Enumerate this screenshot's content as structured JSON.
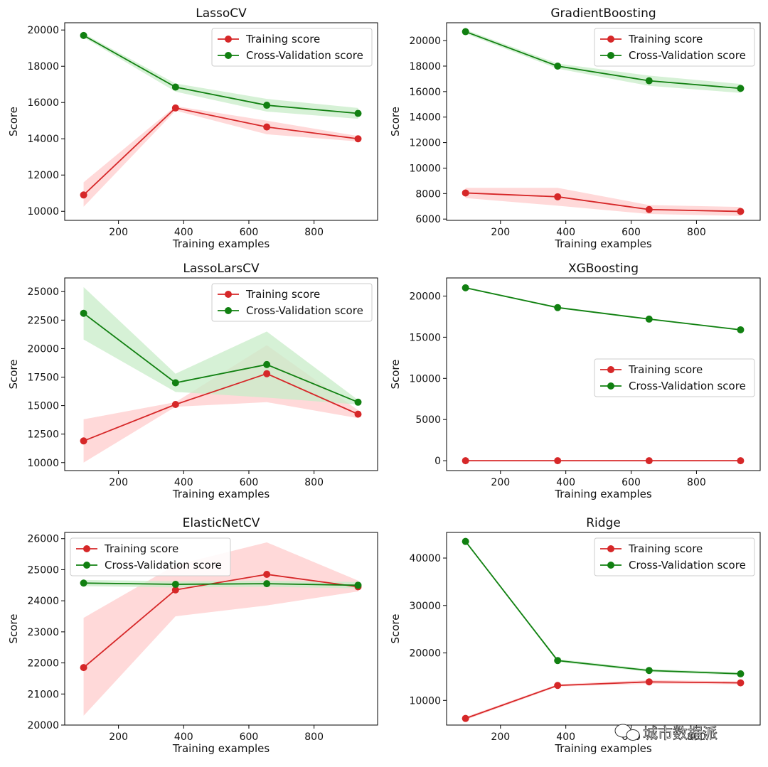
{
  "figure": {
    "watermark": "城市数据派",
    "colors": {
      "train": "#d62728",
      "cv": "#118011",
      "train_band": "#ffcccc",
      "cv_band": "#c8ecc8"
    }
  },
  "chart_data": [
    {
      "type": "line",
      "title": "LassoCV",
      "xlabel": "Training examples",
      "ylabel": "Score",
      "xlim": [
        35,
        995
      ],
      "ylim": [
        9500,
        20400
      ],
      "xticks": [
        200,
        400,
        600,
        800
      ],
      "yticks": [
        10000,
        12000,
        14000,
        16000,
        18000,
        20000
      ],
      "legend_position": "upper-right",
      "x": [
        93,
        375,
        655,
        935
      ],
      "series": [
        {
          "name": "Training score",
          "color": "#d62728",
          "values": [
            10900,
            15700,
            14650,
            14000
          ],
          "band_low": [
            10250,
            15550,
            14250,
            13850
          ],
          "band_high": [
            11600,
            15800,
            15000,
            14150
          ]
        },
        {
          "name": "Cross-Validation score",
          "color": "#118011",
          "values": [
            19700,
            16850,
            15850,
            15400
          ],
          "band_low": [
            19600,
            16600,
            15500,
            15100
          ],
          "band_high": [
            19800,
            17050,
            16200,
            15700
          ]
        }
      ]
    },
    {
      "type": "line",
      "title": "GradientBoosting",
      "xlabel": "Training examples",
      "ylabel": "Score",
      "xlim": [
        35,
        995
      ],
      "ylim": [
        5900,
        21400
      ],
      "xticks": [
        200,
        400,
        600,
        800
      ],
      "yticks": [
        6000,
        8000,
        10000,
        12000,
        14000,
        16000,
        18000,
        20000
      ],
      "legend_position": "upper-right",
      "x": [
        93,
        375,
        655,
        935
      ],
      "series": [
        {
          "name": "Training score",
          "color": "#d62728",
          "values": [
            8050,
            7750,
            6750,
            6600
          ],
          "band_low": [
            7650,
            7050,
            6400,
            6250
          ],
          "band_high": [
            8450,
            8450,
            7100,
            6950
          ]
        },
        {
          "name": "Cross-Validation score",
          "color": "#118011",
          "values": [
            20700,
            18000,
            16850,
            16250
          ],
          "band_low": [
            20550,
            17800,
            16450,
            15900
          ],
          "band_high": [
            20850,
            18200,
            17250,
            16600
          ]
        }
      ]
    },
    {
      "type": "line",
      "title": "LassoLarsCV",
      "xlabel": "Training examples",
      "ylabel": "Score",
      "xlim": [
        35,
        995
      ],
      "ylim": [
        9300,
        26200
      ],
      "xticks": [
        200,
        400,
        600,
        800
      ],
      "yticks": [
        10000,
        12500,
        15000,
        17500,
        20000,
        22500,
        25000
      ],
      "legend_position": "upper-right",
      "x": [
        93,
        375,
        655,
        935
      ],
      "series": [
        {
          "name": "Training score",
          "color": "#d62728",
          "values": [
            11900,
            15100,
            17800,
            14250
          ],
          "band_low": [
            10000,
            14900,
            15300,
            13900
          ],
          "band_high": [
            13800,
            15300,
            20300,
            14600
          ]
        },
        {
          "name": "Cross-Validation score",
          "color": "#118011",
          "values": [
            23100,
            17000,
            18600,
            15300
          ],
          "band_low": [
            20800,
            16200,
            15700,
            15100
          ],
          "band_high": [
            25400,
            17800,
            21500,
            15500
          ]
        }
      ]
    },
    {
      "type": "line",
      "title": "XGBoosting",
      "xlabel": "Training examples",
      "ylabel": "Score",
      "xlim": [
        35,
        995
      ],
      "ylim": [
        -1200,
        22200
      ],
      "xticks": [
        200,
        400,
        600,
        800
      ],
      "yticks": [
        0,
        5000,
        10000,
        15000,
        20000
      ],
      "legend_position": "center-right",
      "x": [
        93,
        375,
        655,
        935
      ],
      "series": [
        {
          "name": "Training score",
          "color": "#d62728",
          "values": [
            0,
            0,
            0,
            0
          ],
          "band_low": [
            -80,
            -80,
            -80,
            -80
          ],
          "band_high": [
            80,
            80,
            80,
            80
          ]
        },
        {
          "name": "Cross-Validation score",
          "color": "#118011",
          "values": [
            21000,
            18600,
            17200,
            15900
          ],
          "band_low": [
            20900,
            18500,
            17100,
            15800
          ],
          "band_high": [
            21100,
            18700,
            17300,
            16000
          ]
        }
      ]
    },
    {
      "type": "line",
      "title": "ElasticNetCV",
      "xlabel": "Training examples",
      "ylabel": "Score",
      "xlim": [
        35,
        995
      ],
      "ylim": [
        20000,
        26200
      ],
      "xticks": [
        200,
        400,
        600,
        800
      ],
      "yticks": [
        20000,
        21000,
        22000,
        23000,
        24000,
        25000,
        26000
      ],
      "legend_position": "upper-left",
      "x": [
        93,
        375,
        655,
        935
      ],
      "series": [
        {
          "name": "Training score",
          "color": "#d62728",
          "values": [
            21850,
            24350,
            24850,
            24450
          ],
          "band_low": [
            20300,
            23500,
            23850,
            24300
          ],
          "band_high": [
            23450,
            25150,
            25880,
            24650
          ]
        },
        {
          "name": "Cross-Validation score",
          "color": "#118011",
          "values": [
            24570,
            24530,
            24550,
            24500
          ],
          "band_low": [
            24470,
            24430,
            24450,
            24400
          ],
          "band_high": [
            24670,
            24630,
            24650,
            24600
          ]
        }
      ]
    },
    {
      "type": "line",
      "title": "Ridge",
      "xlabel": "Training examples",
      "ylabel": "Score",
      "xlim": [
        35,
        995
      ],
      "ylim": [
        4800,
        45400
      ],
      "xticks": [
        200,
        400,
        600,
        800
      ],
      "yticks": [
        10000,
        20000,
        30000,
        40000
      ],
      "legend_position": "upper-right",
      "x": [
        93,
        375,
        655,
        935
      ],
      "series": [
        {
          "name": "Training score",
          "color": "#d62728",
          "values": [
            6200,
            13150,
            13900,
            13700
          ],
          "band_low": [
            5900,
            12900,
            13500,
            13400
          ],
          "band_high": [
            6500,
            13400,
            14300,
            14000
          ]
        },
        {
          "name": "Cross-Validation score",
          "color": "#118011",
          "values": [
            43500,
            18400,
            16300,
            15600
          ],
          "band_low": [
            43300,
            18100,
            16000,
            15300
          ],
          "band_high": [
            43700,
            18700,
            16600,
            15900
          ]
        }
      ]
    }
  ]
}
